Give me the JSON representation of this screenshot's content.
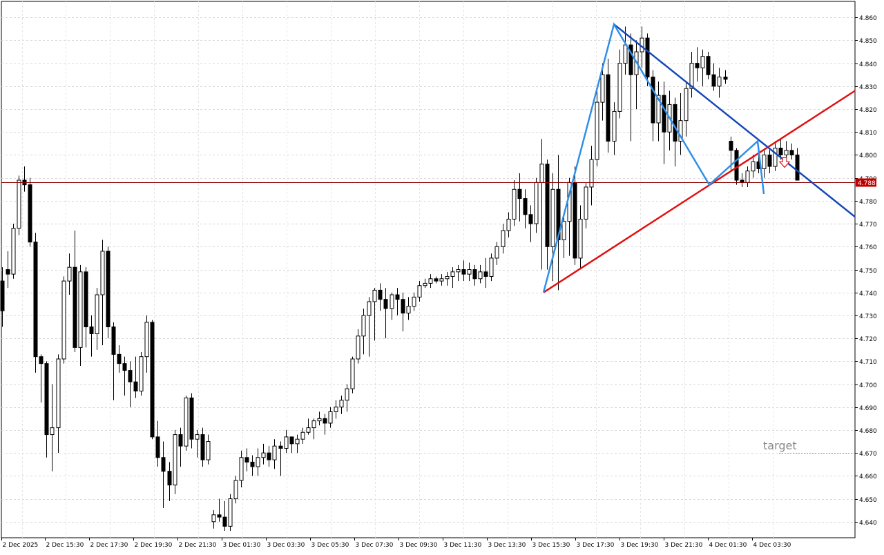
{
  "chart_data": {
    "type": "candlestick",
    "symbol": "",
    "current_price": 4.788,
    "current_price_label": "4.788",
    "y_axis": {
      "ylim": [
        4.633,
        4.867
      ],
      "ticks": [
        "4.640",
        "4.650",
        "4.660",
        "4.670",
        "4.680",
        "4.690",
        "4.700",
        "4.710",
        "4.720",
        "4.730",
        "4.740",
        "4.750",
        "4.760",
        "4.770",
        "4.780",
        "4.790",
        "4.800",
        "4.810",
        "4.820",
        "4.830",
        "4.840",
        "4.850",
        "4.860"
      ]
    },
    "x_axis": {
      "ticks": [
        "2 Dec 2025",
        "2 Dec 15:30",
        "2 Dec 17:30",
        "2 Dec 19:30",
        "2 Dec 21:30",
        "3 Dec 01:30",
        "3 Dec 03:30",
        "3 Dec 05:30",
        "3 Dec 07:30",
        "3 Dec 09:30",
        "3 Dec 11:30",
        "3 Dec 13:30",
        "3 Dec 15:30",
        "3 Dec 17:30",
        "3 Dec 19:30",
        "3 Dec 21:30",
        "4 Dec 01:30",
        "4 Dec 03:30"
      ]
    },
    "grid": true,
    "candles": [
      [
        4.745,
        4.751,
        4.725,
        4.732
      ],
      [
        4.75,
        4.758,
        4.742,
        4.748
      ],
      [
        4.748,
        4.77,
        4.746,
        4.768
      ],
      [
        4.768,
        4.791,
        4.765,
        4.789
      ],
      [
        4.789,
        4.795,
        4.784,
        4.787
      ],
      [
        4.787,
        4.79,
        4.76,
        4.762
      ],
      [
        4.762,
        4.766,
        4.705,
        4.712
      ],
      [
        4.712,
        4.713,
        4.692,
        4.709
      ],
      [
        4.709,
        4.71,
        4.668,
        4.678
      ],
      [
        4.678,
        4.7,
        4.662,
        4.681
      ],
      [
        4.681,
        4.713,
        4.67,
        4.711
      ],
      [
        4.711,
        4.747,
        4.709,
        4.745
      ],
      [
        4.745,
        4.757,
        4.739,
        4.751
      ],
      [
        4.751,
        4.767,
        4.714,
        4.716
      ],
      [
        4.716,
        4.752,
        4.708,
        4.749
      ],
      [
        4.749,
        4.751,
        4.716,
        4.725
      ],
      [
        4.725,
        4.73,
        4.712,
        4.722
      ],
      [
        4.722,
        4.742,
        4.715,
        4.739
      ],
      [
        4.739,
        4.763,
        4.717,
        4.758
      ],
      [
        4.758,
        4.76,
        4.72,
        4.725
      ],
      [
        4.725,
        4.727,
        4.693,
        4.713
      ],
      [
        4.713,
        4.717,
        4.705,
        4.709
      ],
      [
        4.709,
        4.712,
        4.695,
        4.706
      ],
      [
        4.706,
        4.71,
        4.69,
        4.701
      ],
      [
        4.701,
        4.712,
        4.694,
        4.697
      ],
      [
        4.697,
        4.714,
        4.695,
        4.712
      ],
      [
        4.712,
        4.73,
        4.705,
        4.727
      ],
      [
        4.727,
        4.728,
        4.676,
        4.677
      ],
      [
        4.677,
        4.684,
        4.664,
        4.668
      ],
      [
        4.668,
        4.675,
        4.646,
        4.662
      ],
      [
        4.662,
        4.666,
        4.649,
        4.656
      ],
      [
        4.656,
        4.68,
        4.652,
        4.678
      ],
      [
        4.678,
        4.681,
        4.664,
        4.673
      ],
      [
        4.673,
        4.695,
        4.671,
        4.694
      ],
      [
        4.694,
        4.696,
        4.672,
        4.676
      ],
      [
        4.676,
        4.68,
        4.668,
        4.678
      ],
      [
        4.678,
        4.681,
        4.664,
        4.667
      ],
      [
        4.667,
        4.678,
        4.665,
        4.675
      ],
      [
        4.64,
        4.645,
        4.637,
        4.643
      ],
      [
        4.643,
        4.65,
        4.64,
        4.642
      ],
      [
        4.642,
        4.649,
        4.636,
        4.638
      ],
      [
        4.638,
        4.652,
        4.636,
        4.65
      ],
      [
        4.65,
        4.66,
        4.648,
        4.658
      ],
      [
        4.658,
        4.671,
        4.655,
        4.668
      ],
      [
        4.668,
        4.672,
        4.662,
        4.666
      ],
      [
        4.666,
        4.669,
        4.66,
        4.664
      ],
      [
        4.664,
        4.672,
        4.66,
        4.668
      ],
      [
        4.668,
        4.674,
        4.665,
        4.67
      ],
      [
        4.67,
        4.673,
        4.664,
        4.667
      ],
      [
        4.667,
        4.676,
        4.663,
        4.673
      ],
      [
        4.673,
        4.675,
        4.66,
        4.672
      ],
      [
        4.672,
        4.68,
        4.67,
        4.677
      ],
      [
        4.677,
        4.677,
        4.67,
        4.674
      ],
      [
        4.674,
        4.678,
        4.67,
        4.676
      ],
      [
        4.676,
        4.681,
        4.674,
        4.679
      ],
      [
        4.679,
        4.685,
        4.678,
        4.681
      ],
      [
        4.681,
        4.685,
        4.676,
        4.684
      ],
      [
        4.684,
        4.688,
        4.682,
        4.685
      ],
      [
        4.685,
        4.687,
        4.678,
        4.683
      ],
      [
        4.683,
        4.69,
        4.681,
        4.688
      ],
      [
        4.688,
        4.693,
        4.685,
        4.69
      ],
      [
        4.69,
        4.695,
        4.687,
        4.693
      ],
      [
        4.693,
        4.7,
        4.688,
        4.698
      ],
      [
        4.698,
        4.712,
        4.696,
        4.711
      ],
      [
        4.711,
        4.724,
        4.709,
        4.721
      ],
      [
        4.721,
        4.733,
        4.713,
        4.73
      ],
      [
        4.73,
        4.738,
        4.712,
        4.736
      ],
      [
        4.736,
        4.742,
        4.719,
        4.741
      ],
      [
        4.741,
        4.744,
        4.732,
        4.737
      ],
      [
        4.737,
        4.742,
        4.72,
        4.733
      ],
      [
        4.733,
        4.74,
        4.728,
        4.739
      ],
      [
        4.739,
        4.742,
        4.73,
        4.737
      ],
      [
        4.737,
        4.74,
        4.723,
        4.731
      ],
      [
        4.731,
        4.738,
        4.728,
        4.734
      ],
      [
        4.734,
        4.74,
        4.732,
        4.738
      ],
      [
        4.738,
        4.745,
        4.736,
        4.743
      ],
      [
        4.743,
        4.746,
        4.742,
        4.744
      ],
      [
        4.744,
        4.748,
        4.742,
        4.746
      ],
      [
        4.746,
        4.747,
        4.744,
        4.745
      ],
      [
        4.745,
        4.748,
        4.743,
        4.746
      ],
      [
        4.746,
        4.749,
        4.743,
        4.747
      ],
      [
        4.747,
        4.751,
        4.742,
        4.749
      ],
      [
        4.749,
        4.752,
        4.745,
        4.75
      ],
      [
        4.75,
        4.754,
        4.745,
        4.748
      ],
      [
        4.748,
        4.753,
        4.745,
        4.75
      ],
      [
        4.75,
        4.752,
        4.743,
        4.746
      ],
      [
        4.746,
        4.752,
        4.744,
        4.749
      ],
      [
        4.749,
        4.755,
        4.742,
        4.747
      ],
      [
        4.747,
        4.757,
        4.745,
        4.755
      ],
      [
        4.755,
        4.762,
        4.752,
        4.76
      ],
      [
        4.76,
        4.77,
        4.757,
        4.767
      ],
      [
        4.767,
        4.775,
        4.764,
        4.772
      ],
      [
        4.772,
        4.789,
        4.769,
        4.785
      ],
      [
        4.785,
        4.792,
        4.771,
        4.781
      ],
      [
        4.781,
        4.785,
        4.768,
        4.774
      ],
      [
        4.774,
        4.778,
        4.762,
        4.77
      ],
      [
        4.77,
        4.79,
        4.766,
        4.788
      ],
      [
        4.788,
        4.807,
        4.75,
        4.796
      ],
      [
        4.796,
        4.798,
        4.75,
        4.76
      ],
      [
        4.76,
        4.792,
        4.745,
        4.785
      ],
      [
        4.785,
        4.8,
        4.741,
        4.763
      ],
      [
        4.763,
        4.775,
        4.755,
        4.771
      ],
      [
        4.771,
        4.79,
        4.756,
        4.788
      ],
      [
        4.788,
        4.795,
        4.752,
        4.755
      ],
      [
        4.755,
        4.778,
        4.75,
        4.772
      ],
      [
        4.772,
        4.788,
        4.768,
        4.786
      ],
      [
        4.786,
        4.804,
        4.778,
        4.798
      ],
      [
        4.798,
        4.829,
        4.795,
        4.823
      ],
      [
        4.823,
        4.84,
        4.815,
        4.835
      ],
      [
        4.835,
        4.842,
        4.801,
        4.806
      ],
      [
        4.806,
        4.823,
        4.8,
        4.819
      ],
      [
        4.819,
        4.846,
        4.816,
        4.84
      ],
      [
        4.84,
        4.856,
        4.835,
        4.848
      ],
      [
        4.848,
        4.853,
        4.806,
        4.835
      ],
      [
        4.835,
        4.85,
        4.82,
        4.845
      ],
      [
        4.845,
        4.856,
        4.838,
        4.851
      ],
      [
        4.851,
        4.853,
        4.83,
        4.834
      ],
      [
        4.834,
        4.837,
        4.806,
        4.814
      ],
      [
        4.814,
        4.832,
        4.806,
        4.826
      ],
      [
        4.826,
        4.832,
        4.796,
        4.81
      ],
      [
        4.81,
        4.828,
        4.802,
        4.822
      ],
      [
        4.822,
        4.825,
        4.795,
        4.806
      ],
      [
        4.806,
        4.827,
        4.8,
        4.815
      ],
      [
        4.815,
        4.832,
        4.808,
        4.829
      ],
      [
        4.829,
        4.845,
        4.825,
        4.84
      ],
      [
        4.84,
        4.847,
        4.832,
        4.838
      ],
      [
        4.838,
        4.846,
        4.83,
        4.843
      ],
      [
        4.843,
        4.845,
        4.833,
        4.835
      ],
      [
        4.835,
        4.84,
        4.828,
        4.83
      ],
      [
        4.83,
        4.838,
        4.825,
        4.834
      ],
      [
        4.834,
        4.837,
        4.831,
        4.833
      ],
      [
        4.806,
        4.808,
        4.793,
        4.802
      ],
      [
        4.802,
        4.803,
        4.787,
        4.789
      ],
      [
        4.789,
        4.792,
        4.786,
        4.788
      ],
      [
        4.788,
        4.795,
        4.786,
        4.793
      ],
      [
        4.793,
        4.8,
        4.79,
        4.797
      ],
      [
        4.797,
        4.8,
        4.792,
        4.794
      ],
      [
        4.794,
        4.802,
        4.79,
        4.8
      ],
      [
        4.8,
        4.803,
        4.792,
        4.795
      ],
      [
        4.795,
        4.806,
        4.793,
        4.803
      ],
      [
        4.803,
        4.807,
        4.798,
        4.8
      ],
      [
        4.8,
        4.806,
        4.796,
        4.802
      ],
      [
        4.802,
        4.805,
        4.798,
        4.8
      ],
      [
        4.8,
        4.803,
        4.789,
        4.789
      ]
    ],
    "annotations": {
      "red_trendline": [
        [
          4.74
        ],
        [
          4.828
        ]
      ],
      "target_label": "target",
      "target_level": 4.67
    }
  }
}
